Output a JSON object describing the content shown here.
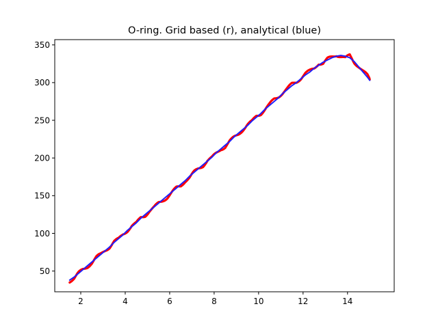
{
  "chart_data": {
    "type": "line",
    "title": "O-ring. Grid based (r), analytical (blue)",
    "xlabel": "",
    "ylabel": "",
    "xlim": [
      0.83,
      16.1
    ],
    "ylim": [
      22.5,
      357
    ],
    "xticks": [
      2,
      4,
      6,
      8,
      10,
      12,
      14
    ],
    "yticks": [
      50,
      100,
      150,
      200,
      250,
      300,
      350
    ],
    "grid": false,
    "legend": "none",
    "series": [
      {
        "color": "#ff0000",
        "style": "wiggly",
        "x": [
          1.5,
          1.7,
          1.9,
          2.1,
          2.3,
          2.5,
          2.7,
          2.9,
          3.1,
          3.3,
          3.5,
          3.7,
          3.9,
          4.1,
          4.3,
          4.5,
          4.7,
          4.9,
          5.1,
          5.3,
          5.5,
          5.7,
          5.9,
          6.1,
          6.3,
          6.5,
          6.7,
          6.9,
          7.1,
          7.3,
          7.5,
          7.7,
          7.9,
          8.1,
          8.3,
          8.5,
          8.7,
          8.9,
          9.1,
          9.3,
          9.5,
          9.7,
          9.9,
          10.1,
          10.3,
          10.5,
          10.7,
          10.9,
          11.1,
          11.3,
          11.5,
          11.7,
          11.9,
          12.1,
          12.3,
          12.5,
          12.7,
          12.9,
          13.1,
          13.3,
          13.5,
          13.7,
          13.9,
          14.1,
          14.3,
          14.5,
          14.7,
          14.9,
          15.0
        ],
        "y": [
          37,
          40,
          47,
          52,
          56,
          61,
          68,
          72,
          78,
          82,
          89,
          92,
          99,
          104,
          110,
          113,
          121,
          124,
          130,
          134,
          140,
          144,
          148,
          154,
          160,
          163,
          170,
          174,
          181,
          186,
          190,
          197,
          200,
          206,
          212,
          215,
          222,
          227,
          232,
          238,
          244,
          248,
          256,
          259,
          265,
          271,
          278,
          282,
          287,
          292,
          298,
          301,
          306,
          312,
          315,
          319,
          326,
          325,
          331,
          334,
          337,
          335,
          332,
          336,
          327,
          322,
          315,
          309,
          304
        ]
      },
      {
        "color": "#1f1fff",
        "style": "smooth",
        "x": [
          1.5,
          1.7,
          1.9,
          2.1,
          2.3,
          2.5,
          2.7,
          2.9,
          3.1,
          3.3,
          3.5,
          3.7,
          3.9,
          4.1,
          4.3,
          4.5,
          4.7,
          4.9,
          5.1,
          5.3,
          5.5,
          5.7,
          5.9,
          6.1,
          6.3,
          6.5,
          6.7,
          6.9,
          7.1,
          7.3,
          7.5,
          7.7,
          7.9,
          8.1,
          8.3,
          8.5,
          8.7,
          8.9,
          9.1,
          9.3,
          9.5,
          9.7,
          9.9,
          10.1,
          10.3,
          10.5,
          10.7,
          10.9,
          11.1,
          11.3,
          11.5,
          11.7,
          11.9,
          12.1,
          12.3,
          12.5,
          12.7,
          12.9,
          13.1,
          13.3,
          13.5,
          13.7,
          13.9,
          14.1,
          14.3,
          14.5,
          14.7,
          14.9,
          15.0
        ],
        "y": [
          38,
          42,
          47,
          52,
          57,
          62,
          67,
          72,
          77,
          82,
          88,
          93,
          98,
          104,
          109,
          114,
          120,
          125,
          130,
          135,
          140,
          145,
          150,
          155,
          160,
          165,
          170,
          176,
          181,
          186,
          191,
          196,
          201,
          207,
          212,
          217,
          222,
          228,
          233,
          238,
          243,
          249,
          254,
          259,
          265,
          270,
          275,
          280,
          286,
          291,
          296,
          300,
          305,
          310,
          314,
          319,
          323,
          327,
          330,
          333,
          335,
          336,
          335,
          333,
          328,
          321,
          314,
          307,
          303
        ]
      }
    ]
  }
}
